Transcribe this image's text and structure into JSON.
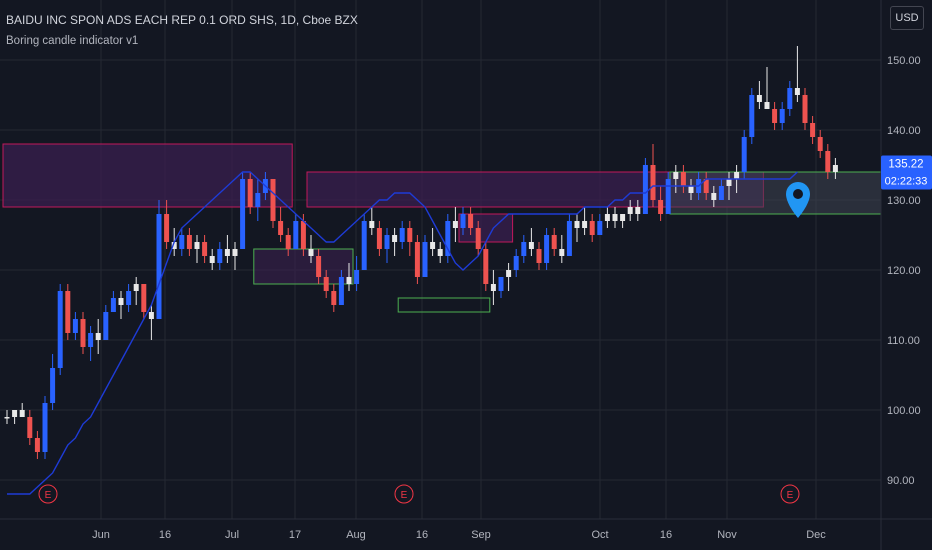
{
  "header": {
    "title": "BAIDU INC SPON ADS EACH REP 0.1 ORD SHS, 1D, Cboe BZX",
    "indicator": "Boring candle indicator v1",
    "currency_button": "USD"
  },
  "colors": {
    "background": "#131722",
    "grid": "#242833",
    "up": "#2962ff",
    "down": "#ef5350",
    "boring": "#e8e8e8",
    "ma_line": "#1e3bd6",
    "zone_fill_purple": "#3a1f4f",
    "zone_border_red": "#c2185b",
    "zone_border_green": "#4caf50",
    "zone_fill_grey": "#3e4350",
    "price_label": "#2962ff",
    "event_marker": "#f23645",
    "pin": "#2196f3"
  },
  "chart_data": {
    "type": "candlestick",
    "y_axis": {
      "ticks": [
        90,
        100,
        110,
        120,
        130,
        140,
        150
      ],
      "labels": [
        "90.00",
        "100.00",
        "110.00",
        "120.00",
        "130.00",
        "140.00",
        "150.00"
      ],
      "position": "right"
    },
    "x_axis": {
      "labels": [
        "Jun",
        "16",
        "Jul",
        "17",
        "Aug",
        "16",
        "Sep",
        "Oct",
        "16",
        "Nov",
        "Dec"
      ]
    },
    "current_price": {
      "value": 135.22,
      "label": "135.22",
      "countdown": "02:22:33"
    },
    "earnings_markers": {
      "label": "E",
      "count": 3
    },
    "candles": [
      [
        99,
        100,
        98,
        99
      ],
      [
        99,
        100,
        98,
        100
      ],
      [
        100,
        101,
        99,
        99
      ],
      [
        99,
        100,
        95,
        96
      ],
      [
        96,
        97,
        93,
        94
      ],
      [
        94,
        102,
        93,
        101
      ],
      [
        101,
        108,
        100,
        106
      ],
      [
        106,
        118,
        105,
        117
      ],
      [
        117,
        118,
        110,
        111
      ],
      [
        111,
        114,
        110,
        113
      ],
      [
        113,
        114,
        108,
        109
      ],
      [
        109,
        112,
        107,
        111
      ],
      [
        111,
        113,
        108,
        110
      ],
      [
        110,
        115,
        110,
        114
      ],
      [
        114,
        117,
        114,
        116
      ],
      [
        116,
        117,
        113,
        115
      ],
      [
        115,
        118,
        114,
        117
      ],
      [
        117,
        119,
        115,
        118
      ],
      [
        118,
        118,
        113,
        114
      ],
      [
        114,
        115,
        110,
        113
      ],
      [
        113,
        130,
        113,
        128
      ],
      [
        128,
        130,
        123,
        124
      ],
      [
        124,
        126,
        122,
        123
      ],
      [
        123,
        126,
        122,
        125
      ],
      [
        125,
        126,
        122,
        123
      ],
      [
        123,
        125,
        121,
        124
      ],
      [
        124,
        125,
        121,
        122
      ],
      [
        122,
        123,
        120,
        121
      ],
      [
        121,
        124,
        120,
        123
      ],
      [
        123,
        125,
        121,
        122
      ],
      [
        122,
        124,
        120,
        123
      ],
      [
        123,
        134,
        123,
        133
      ],
      [
        133,
        134,
        128,
        129
      ],
      [
        129,
        133,
        127,
        131
      ],
      [
        131,
        134,
        130,
        133
      ],
      [
        133,
        133,
        126,
        127
      ],
      [
        127,
        129,
        124,
        125
      ],
      [
        125,
        126,
        122,
        123
      ],
      [
        123,
        128,
        123,
        127
      ],
      [
        127,
        128,
        122,
        123
      ],
      [
        123,
        125,
        121,
        122
      ],
      [
        122,
        123,
        118,
        119
      ],
      [
        119,
        120,
        116,
        117
      ],
      [
        117,
        118,
        114,
        115
      ],
      [
        115,
        120,
        115,
        119
      ],
      [
        119,
        121,
        117,
        118
      ],
      [
        118,
        122,
        117,
        120
      ],
      [
        120,
        128,
        120,
        127
      ],
      [
        127,
        129,
        125,
        126
      ],
      [
        126,
        127,
        122,
        123
      ],
      [
        123,
        126,
        121,
        125
      ],
      [
        125,
        126,
        122,
        124
      ],
      [
        124,
        127,
        123,
        126
      ],
      [
        126,
        127,
        122,
        124
      ],
      [
        124,
        125,
        118,
        119
      ],
      [
        119,
        125,
        119,
        124
      ],
      [
        124,
        126,
        122,
        123
      ],
      [
        123,
        124,
        121,
        122
      ],
      [
        122,
        128,
        121,
        127
      ],
      [
        127,
        129,
        124,
        126
      ],
      [
        126,
        129,
        125,
        128
      ],
      [
        128,
        129,
        125,
        126
      ],
      [
        126,
        127,
        122,
        123
      ],
      [
        123,
        124,
        117,
        118
      ],
      [
        118,
        120,
        115,
        117
      ],
      [
        117,
        119,
        116,
        119
      ],
      [
        119,
        121,
        117,
        120
      ],
      [
        120,
        123,
        119,
        122
      ],
      [
        122,
        125,
        121,
        124
      ],
      [
        124,
        126,
        122,
        123
      ],
      [
        123,
        124,
        120,
        121
      ],
      [
        121,
        126,
        120,
        125
      ],
      [
        125,
        126,
        122,
        123
      ],
      [
        123,
        125,
        121,
        122
      ],
      [
        122,
        128,
        122,
        127
      ],
      [
        127,
        128,
        124,
        126
      ],
      [
        126,
        129,
        125,
        127
      ],
      [
        127,
        128,
        124,
        125
      ],
      [
        125,
        128,
        125,
        127
      ],
      [
        127,
        129,
        126,
        128
      ],
      [
        128,
        129,
        126,
        127
      ],
      [
        127,
        128,
        126,
        128
      ],
      [
        128,
        130,
        127,
        129
      ],
      [
        129,
        130,
        127,
        128
      ],
      [
        128,
        136,
        128,
        135
      ],
      [
        135,
        138,
        129,
        130
      ],
      [
        130,
        132,
        127,
        128
      ],
      [
        128,
        134,
        128,
        133
      ],
      [
        133,
        135,
        131,
        134
      ],
      [
        134,
        135,
        131,
        132
      ],
      [
        132,
        133,
        130,
        131
      ],
      [
        131,
        134,
        130,
        133
      ],
      [
        133,
        134,
        130,
        131
      ],
      [
        131,
        132,
        129,
        130
      ],
      [
        130,
        133,
        130,
        132
      ],
      [
        132,
        134,
        130,
        133
      ],
      [
        133,
        135,
        131,
        134
      ],
      [
        134,
        140,
        133,
        139
      ],
      [
        139,
        146,
        138,
        145
      ],
      [
        145,
        147,
        143,
        144
      ],
      [
        144,
        149,
        143,
        143
      ],
      [
        143,
        144,
        140,
        141
      ],
      [
        141,
        144,
        140,
        143
      ],
      [
        143,
        147,
        142,
        146
      ],
      [
        146,
        152,
        144,
        145
      ],
      [
        145,
        146,
        140,
        141
      ],
      [
        141,
        142,
        138,
        139
      ],
      [
        139,
        140,
        136,
        137
      ],
      [
        137,
        138,
        133,
        134
      ],
      [
        134,
        136,
        133,
        135
      ]
    ],
    "ma_series": [
      88,
      88,
      88,
      88,
      89,
      90,
      91,
      93,
      95,
      96,
      98,
      99,
      101,
      103,
      105,
      107,
      109,
      111,
      113,
      115,
      118,
      121,
      124,
      126,
      127,
      128,
      129,
      130,
      131,
      132,
      133,
      134,
      134,
      133,
      132,
      131,
      130,
      129,
      128,
      127,
      126,
      125,
      124,
      124,
      125,
      126,
      127,
      128,
      129,
      130,
      130,
      131,
      131,
      131,
      130,
      129,
      127,
      125,
      123,
      121,
      120,
      121,
      122,
      124,
      126,
      127,
      128,
      128,
      128,
      128,
      128,
      128,
      128,
      128,
      128,
      128,
      129,
      129,
      129,
      129,
      130,
      130,
      131,
      131,
      131,
      132,
      132,
      132,
      132,
      132,
      132,
      132,
      133,
      133,
      133,
      133,
      133,
      133,
      133,
      133,
      133,
      133,
      133,
      133,
      134
    ],
    "zones": [
      {
        "from": 0,
        "to": 37,
        "high": 138,
        "low": 129,
        "kind": "purple"
      },
      {
        "from": 40,
        "to": 99,
        "high": 134,
        "low": 129,
        "kind": "purple"
      },
      {
        "from": 33,
        "to": 45,
        "high": 123,
        "low": 118,
        "kind": "purple-green"
      },
      {
        "from": 52,
        "to": 63,
        "high": 116,
        "low": 114,
        "kind": "green"
      },
      {
        "from": 60,
        "to": 66,
        "high": 128,
        "low": 124,
        "kind": "purple"
      },
      {
        "from": 105,
        "to": 137,
        "high": 134,
        "low": 128,
        "kind": "grey"
      }
    ]
  }
}
